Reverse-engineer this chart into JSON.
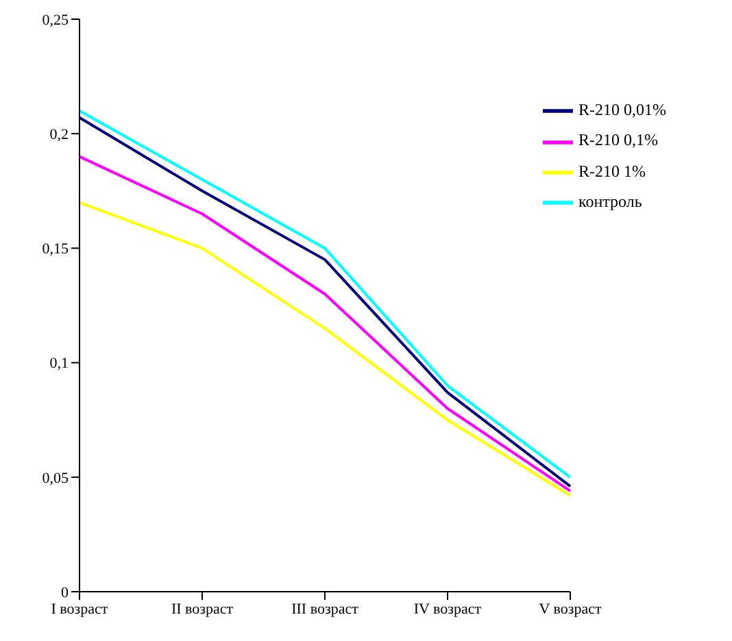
{
  "chart_data": {
    "type": "line",
    "categories": [
      "I возраст",
      "II возраст",
      "III возраст",
      "IV возраст",
      "V возраст"
    ],
    "series": [
      {
        "name": "R-210 0,01%",
        "color": "#000080",
        "values": [
          0.207,
          0.175,
          0.145,
          0.087,
          0.046
        ]
      },
      {
        "name": "R-210 0,1%",
        "color": "#ff00ff",
        "values": [
          0.19,
          0.165,
          0.13,
          0.08,
          0.044
        ]
      },
      {
        "name": "R-210 1%",
        "color": "#ffff00",
        "values": [
          0.17,
          0.15,
          0.115,
          0.075,
          0.042
        ]
      },
      {
        "name": "контроль",
        "color": "#00ffff",
        "values": [
          0.21,
          0.18,
          0.15,
          0.09,
          0.05
        ]
      }
    ],
    "ylim": [
      0,
      0.25
    ],
    "yticks": [
      0,
      {
        "value": 0.05,
        "label": "0,05"
      },
      {
        "value": 0.1,
        "label": "0,1"
      },
      {
        "value": 0.15,
        "label": "0,15"
      },
      {
        "value": 0.2,
        "label": "0,2"
      },
      {
        "value": 0.25,
        "label": "0,25"
      }
    ],
    "legend": "top right",
    "grid": false,
    "marker": "none",
    "line_style": "solid"
  }
}
